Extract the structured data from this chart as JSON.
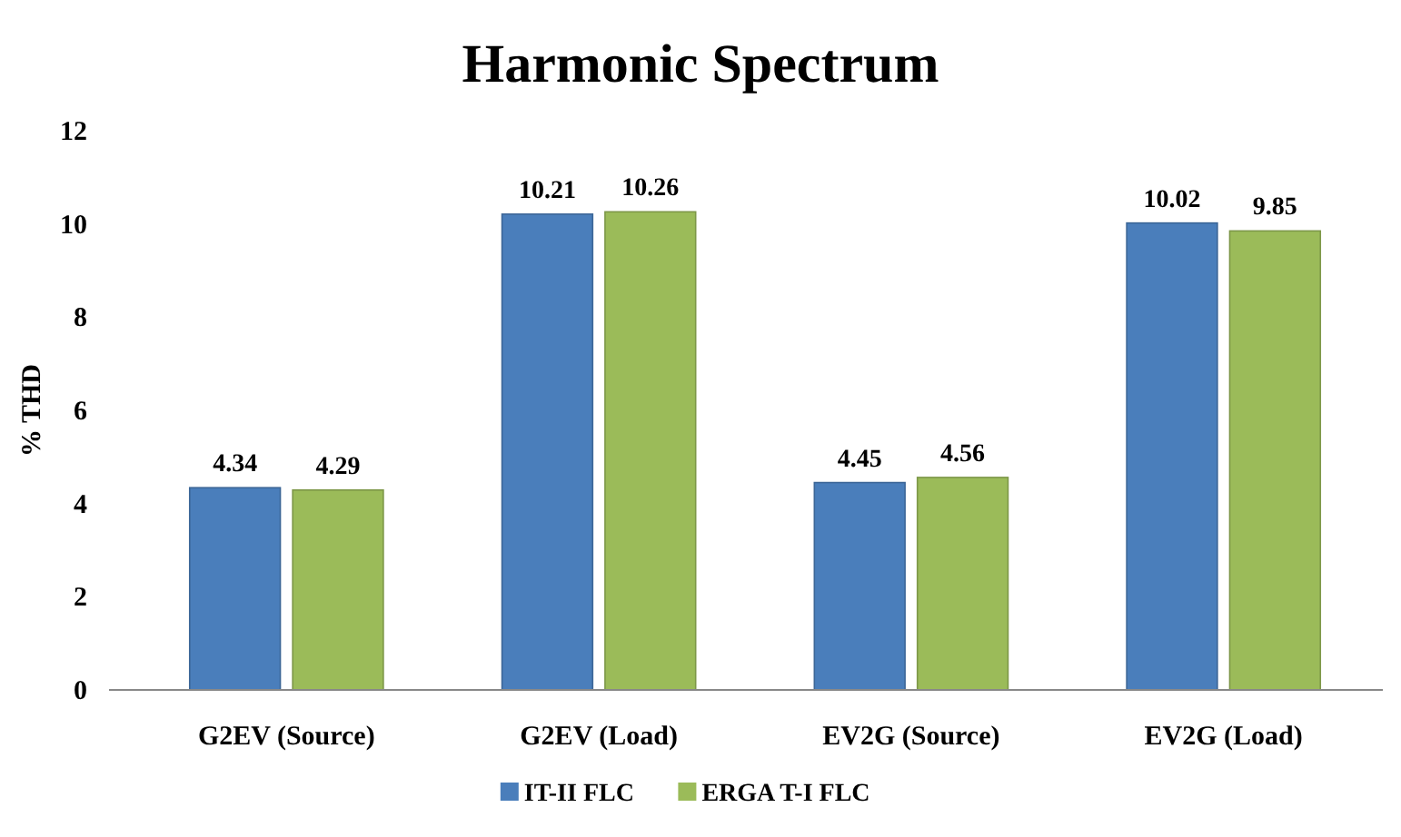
{
  "chart_data": {
    "type": "bar",
    "title": "Harmonic Spectrum",
    "ylabel": "% THD",
    "categories": [
      "G2EV (Source)",
      "G2EV (Load)",
      "EV2G (Source)",
      "EV2G (Load)"
    ],
    "series": [
      {
        "name": "IT-II FLC",
        "color": "#4a7ebb",
        "values": [
          4.34,
          10.21,
          4.45,
          10.02
        ]
      },
      {
        "name": "ERGA T-I FLC",
        "color": "#9bbb59",
        "values": [
          4.29,
          10.26,
          4.56,
          9.85
        ]
      }
    ],
    "ylim": [
      0,
      12
    ],
    "yticks": [
      0,
      2,
      4,
      6,
      8,
      10,
      12
    ],
    "grid": false,
    "legend": "bottom",
    "data_labels": true
  }
}
